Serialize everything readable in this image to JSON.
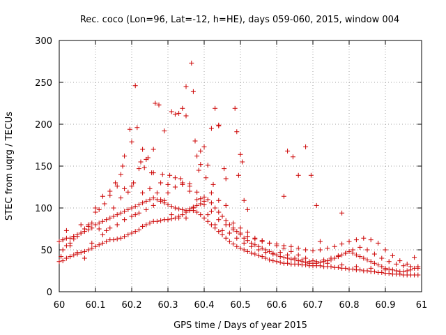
{
  "chart_data": {
    "type": "scatter",
    "title": "Rec. coco (Lon=96, Lat=-12, h=HE), days 059-060, 2015, window 004",
    "xlabel": "GPS time / Days of year 2015",
    "ylabel": "STEC from uqrg / TECUs",
    "xlim": [
      60,
      61
    ],
    "ylim": [
      0,
      300
    ],
    "x_ticks": [
      "60",
      "60.1",
      "60.2",
      "60.3",
      "60.4",
      "60.5",
      "60.6",
      "60.7",
      "60.8",
      "60.9",
      "61"
    ],
    "y_ticks": [
      "0",
      "50",
      "100",
      "150",
      "200",
      "250",
      "300"
    ],
    "grid": true,
    "marker": "+",
    "color": "#cc0000",
    "series": [
      {
        "x": [
          60.21,
          60.265,
          60.275,
          60.275,
          60.31,
          60.35,
          60.365,
          60.37,
          60.43,
          60.44,
          60.44,
          60.485,
          60.49,
          60.5,
          60.505,
          60.63,
          60.645,
          60.68,
          60.695,
          60.46,
          60.34,
          60.42,
          60.4,
          60.38,
          60.195,
          60.2,
          60.215,
          60.23,
          60.245,
          60.26,
          60.29,
          60.32,
          60.33,
          60.35,
          60.375,
          60.41,
          60.455,
          60.495,
          60.51,
          60.52,
          60.62,
          60.66,
          60.71,
          60.72,
          60.78,
          60.385,
          60.39,
          60.39,
          60.405,
          60.425,
          60.36,
          60.335,
          60.305,
          60.285,
          60.255,
          60.235,
          60.225,
          60.205,
          60.18,
          60.175,
          60.17,
          60.155,
          60.14,
          60.125,
          60.11,
          60.1,
          60.09,
          60.08,
          60.07,
          60.06,
          60.05,
          60.04,
          60.03,
          60.02,
          60.01,
          60.005
        ],
        "y": [
          246,
          225,
          223,
          223,
          215,
          245,
          273,
          239,
          219,
          198,
          199,
          219,
          191,
          164,
          155,
          168,
          161,
          173,
          139,
          135,
          219,
          195,
          173,
          162,
          194,
          179,
          196,
          170,
          160,
          170,
          192,
          212,
          213,
          210,
          180,
          151,
          147,
          139,
          109,
          98,
          114,
          139,
          103,
          60,
          94,
          145,
          152,
          168,
          136,
          128,
          129,
          135,
          139,
          140,
          142,
          148,
          155,
          130,
          162,
          150,
          140,
          130,
          115,
          105,
          98,
          95,
          82,
          80,
          75,
          70,
          66,
          63,
          58,
          55,
          50,
          42
        ]
      },
      {
        "x": [
          60.0,
          60.01,
          60.02,
          60.03,
          60.04,
          60.05,
          60.06,
          60.07,
          60.08,
          60.09,
          60.1,
          60.11,
          60.12,
          60.13,
          60.14,
          60.15,
          60.16,
          60.17,
          60.18,
          60.19,
          60.2,
          60.21,
          60.22,
          60.23,
          60.24,
          60.25,
          60.26,
          60.27,
          60.28,
          60.29,
          60.3,
          60.31,
          60.32,
          60.33,
          60.34,
          60.35,
          60.36,
          60.37,
          60.38,
          60.39,
          60.4,
          60.41,
          60.42,
          60.43,
          60.44,
          60.45,
          60.46,
          60.47,
          60.48,
          60.49,
          60.5,
          60.51,
          60.52,
          60.53,
          60.54,
          60.55,
          60.56,
          60.57,
          60.58,
          60.59,
          60.6,
          60.61,
          60.62,
          60.63,
          60.64,
          60.65,
          60.66,
          60.67,
          60.68,
          60.69,
          60.7,
          60.71,
          60.72,
          60.73,
          60.74,
          60.75,
          60.76,
          60.77,
          60.78,
          60.79,
          60.8,
          60.81,
          60.82,
          60.83,
          60.84,
          60.85,
          60.86,
          60.87,
          60.88,
          60.89,
          60.9,
          60.91,
          60.92,
          60.93,
          60.94,
          60.95,
          60.96,
          60.97,
          60.98,
          60.99
        ],
        "y": [
          36,
          37,
          40,
          42,
          44,
          45,
          47,
          48,
          50,
          52,
          54,
          56,
          58,
          60,
          62,
          62,
          63,
          64,
          66,
          68,
          70,
          72,
          74,
          78,
          80,
          82,
          84,
          84,
          85,
          86,
          86,
          87,
          88,
          90,
          92,
          95,
          97,
          97,
          95,
          92,
          88,
          84,
          80,
          76,
          72,
          68,
          64,
          60,
          57,
          54,
          52,
          50,
          48,
          46,
          45,
          43,
          42,
          40,
          38,
          37,
          36,
          35,
          34,
          34,
          33,
          33,
          33,
          32,
          32,
          31,
          31,
          31,
          31,
          30,
          30,
          30,
          29,
          29,
          28,
          28,
          27,
          27,
          26,
          26,
          25,
          25,
          24,
          24,
          23,
          23,
          22,
          22,
          21,
          21,
          21,
          20,
          20,
          20,
          20,
          20
        ]
      },
      {
        "x": [
          60.0,
          60.01,
          60.02,
          60.03,
          60.04,
          60.05,
          60.06,
          60.07,
          60.08,
          60.09,
          60.1,
          60.11,
          60.12,
          60.13,
          60.14,
          60.15,
          60.16,
          60.17,
          60.18,
          60.19,
          60.2,
          60.21,
          60.22,
          60.23,
          60.24,
          60.25,
          60.26,
          60.27,
          60.28,
          60.29,
          60.3,
          60.31,
          60.32,
          60.33,
          60.34,
          60.35,
          60.36,
          60.37,
          60.38,
          60.39,
          60.4,
          60.41,
          60.42,
          60.43,
          60.44,
          60.45,
          60.46,
          60.47,
          60.48,
          60.49,
          60.5,
          60.51,
          60.52,
          60.53,
          60.54,
          60.55,
          60.56,
          60.57,
          60.58,
          60.59,
          60.6,
          60.61,
          60.62,
          60.63,
          60.64,
          60.65,
          60.66,
          60.67,
          60.68,
          60.69,
          60.7,
          60.71,
          60.72,
          60.73,
          60.74,
          60.75,
          60.76,
          60.77,
          60.78,
          60.79,
          60.8,
          60.81,
          60.82,
          60.83,
          60.84,
          60.85,
          60.86,
          60.87,
          60.88,
          60.89,
          60.9,
          60.91,
          60.92,
          60.93,
          60.94,
          60.95,
          60.96,
          60.97,
          60.98,
          60.99
        ],
        "y": [
          60,
          62,
          64,
          64,
          66,
          68,
          70,
          72,
          74,
          76,
          80,
          82,
          84,
          86,
          88,
          90,
          92,
          94,
          96,
          98,
          100,
          102,
          104,
          106,
          108,
          110,
          112,
          110,
          108,
          106,
          104,
          102,
          100,
          99,
          98,
          97,
          99,
          101,
          103,
          105,
          108,
          110,
          106,
          100,
          95,
          90,
          85,
          80,
          76,
          72,
          68,
          64,
          61,
          58,
          56,
          54,
          52,
          50,
          48,
          46,
          44,
          42,
          41,
          40,
          39,
          38,
          37,
          36,
          35,
          34,
          34,
          34,
          35,
          36,
          37,
          38,
          40,
          42,
          44,
          46,
          48,
          46,
          44,
          42,
          40,
          38,
          36,
          34,
          32,
          30,
          28,
          27,
          26,
          25,
          24,
          24,
          25,
          26,
          28,
          30
        ]
      },
      {
        "x": [
          60.02,
          60.04,
          60.06,
          60.08,
          60.1,
          60.12,
          60.14,
          60.16,
          60.18,
          60.2,
          60.22,
          60.24,
          60.26,
          60.28,
          60.3,
          60.32,
          60.34,
          60.36,
          60.38,
          60.4,
          60.42,
          60.44,
          60.46,
          60.48,
          60.5,
          60.52,
          60.54,
          60.56,
          60.58,
          60.6,
          60.62,
          60.64,
          60.66,
          60.68,
          60.7,
          60.72,
          60.74,
          60.76,
          60.78,
          60.8,
          60.82,
          60.84,
          60.86,
          60.88,
          60.9,
          60.92,
          60.94,
          60.96,
          60.98
        ],
        "y": [
          73,
          66,
          80,
          78,
          100,
          114,
          120,
          126,
          123,
          126,
          147,
          158,
          142,
          130,
          128,
          136,
          130,
          126,
          119,
          113,
          118,
          109,
          103,
          82,
          76,
          71,
          64,
          61,
          58,
          57,
          55,
          54,
          52,
          50,
          49,
          50,
          52,
          54,
          57,
          60,
          62,
          64,
          62,
          58,
          50,
          43,
          37,
          33,
          41
        ]
      },
      {
        "x": [
          60.01,
          60.03,
          60.05,
          60.07,
          60.09,
          60.11,
          60.13,
          60.15,
          60.17,
          60.19,
          60.21,
          60.23,
          60.25,
          60.27,
          60.29,
          60.31,
          60.33,
          60.35,
          60.37,
          60.39,
          60.41,
          60.43,
          60.45,
          60.47,
          60.49,
          60.51,
          60.53,
          60.55,
          60.57,
          60.59,
          60.61,
          60.63,
          60.65,
          60.67,
          60.69,
          60.71,
          60.73,
          60.75,
          60.77,
          60.79,
          60.81,
          60.83,
          60.85,
          60.87,
          60.89,
          60.91,
          60.93,
          60.95,
          60.97,
          60.99
        ],
        "y": [
          62,
          55,
          47,
          40,
          58,
          75,
          73,
          100,
          112,
          119,
          92,
          118,
          123,
          118,
          109,
          92,
          88,
          88,
          100,
          111,
          92,
          80,
          73,
          70,
          64,
          58,
          54,
          50,
          47,
          45,
          47,
          44,
          40,
          38,
          36,
          36,
          38,
          40,
          43,
          46,
          50,
          53,
          50,
          45,
          40,
          36,
          33,
          31,
          30,
          28
        ]
      },
      {
        "x": [
          60.12,
          60.14,
          60.16,
          60.18,
          60.2,
          60.22,
          60.24,
          60.26,
          60.28,
          60.3,
          60.32,
          60.34,
          60.36,
          60.38,
          60.4,
          60.42,
          60.44,
          60.46,
          60.48,
          60.5,
          60.52,
          60.54,
          60.56,
          60.58,
          60.6,
          60.62,
          60.64,
          60.66,
          60.68,
          60.7,
          60.74,
          60.78,
          60.82,
          60.86,
          60.9
        ],
        "y": [
          68,
          76,
          80,
          86,
          90,
          94,
          98,
          103,
          110,
          118,
          125,
          128,
          120,
          110,
          104,
          96,
          86,
          80,
          74,
          70,
          66,
          63,
          60,
          58,
          55,
          52,
          48,
          44,
          40,
          37,
          34,
          32,
          30,
          28,
          26
        ]
      }
    ]
  }
}
